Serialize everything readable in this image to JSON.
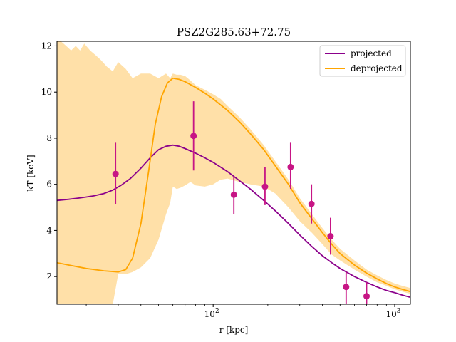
{
  "chart_data": {
    "type": "line",
    "title": "PSZ2G285.63+72.75",
    "xlabel": "r [kpc]",
    "ylabel": "kT [keV]",
    "xscale": "log",
    "xlim": [
      13.8,
      1220
    ],
    "ylim": [
      0.8,
      12.2
    ],
    "grid": false,
    "legend_position": "top-right",
    "xtick_labels": [
      {
        "value": 100,
        "base": "10",
        "exp": "2"
      },
      {
        "value": 1000,
        "base": "10",
        "exp": "3"
      }
    ],
    "yticks": [
      2,
      4,
      6,
      8,
      10,
      12
    ],
    "colors": {
      "projected": "#8b008b",
      "deprojected": "#ffa500",
      "band": "#ffe0a8",
      "points": "#c71585"
    },
    "series": [
      {
        "name": "projected",
        "x": [
          13.8,
          16,
          18,
          20,
          22,
          25,
          28,
          31,
          35,
          40,
          45,
          50,
          55,
          60,
          65,
          70,
          80,
          90,
          100,
          120,
          140,
          160,
          190,
          220,
          260,
          300,
          350,
          400,
          450,
          500,
          600,
          700,
          800,
          900,
          1000,
          1100,
          1220
        ],
        "y": [
          5.3,
          5.35,
          5.4,
          5.45,
          5.5,
          5.6,
          5.75,
          5.95,
          6.25,
          6.7,
          7.15,
          7.5,
          7.65,
          7.7,
          7.65,
          7.55,
          7.35,
          7.15,
          6.95,
          6.55,
          6.15,
          5.8,
          5.3,
          4.85,
          4.3,
          3.8,
          3.3,
          2.9,
          2.6,
          2.35,
          2.0,
          1.75,
          1.55,
          1.4,
          1.3,
          1.2,
          1.1
        ]
      },
      {
        "name": "deprojected",
        "x": [
          13.8,
          16,
          20,
          25,
          30,
          33,
          36,
          40,
          44,
          48,
          52,
          56,
          60,
          65,
          70,
          80,
          90,
          100,
          120,
          140,
          160,
          190,
          220,
          260,
          300,
          350,
          400,
          450,
          500,
          600,
          700,
          800,
          900,
          1000,
          1100,
          1220
        ],
        "y": [
          2.6,
          2.5,
          2.35,
          2.25,
          2.2,
          2.3,
          2.8,
          4.3,
          6.5,
          8.6,
          9.8,
          10.4,
          10.6,
          10.55,
          10.45,
          10.2,
          9.95,
          9.7,
          9.2,
          8.7,
          8.2,
          7.5,
          6.8,
          6.0,
          5.2,
          4.5,
          3.9,
          3.4,
          3.0,
          2.5,
          2.15,
          1.9,
          1.7,
          1.55,
          1.45,
          1.35
        ]
      }
    ],
    "deprojected_band": {
      "x": [
        13.8,
        14.5,
        15.5,
        16.5,
        17.5,
        18.5,
        19.5,
        21,
        22.5,
        24,
        26,
        28,
        30,
        33,
        36,
        40,
        45,
        50,
        55,
        58,
        60,
        63,
        66,
        70,
        75,
        80,
        90,
        100,
        110,
        120,
        140,
        160,
        190,
        220,
        260,
        300,
        350,
        400,
        450,
        500,
        600,
        700,
        800,
        900,
        1000,
        1100,
        1220
      ],
      "upper": [
        12.2,
        12.2,
        12.0,
        11.8,
        12.0,
        11.8,
        12.1,
        11.8,
        11.6,
        11.4,
        11.1,
        10.9,
        11.3,
        11.0,
        10.6,
        10.8,
        10.8,
        10.6,
        10.8,
        10.6,
        10.8,
        10.75,
        10.75,
        10.7,
        10.5,
        10.3,
        10.1,
        9.9,
        9.7,
        9.4,
        8.9,
        8.4,
        7.7,
        7.0,
        6.2,
        5.4,
        4.7,
        4.1,
        3.6,
        3.2,
        2.7,
        2.3,
        2.05,
        1.85,
        1.7,
        1.6,
        1.5
      ],
      "lower": [
        0.8,
        0.8,
        0.8,
        0.8,
        0.8,
        0.8,
        0.8,
        0.8,
        0.8,
        0.8,
        0.8,
        0.8,
        2.1,
        2.1,
        2.2,
        2.4,
        2.8,
        3.6,
        4.7,
        5.2,
        5.9,
        5.8,
        5.85,
        5.95,
        6.1,
        5.95,
        5.9,
        6.0,
        6.2,
        6.25,
        6.1,
        6.0,
        5.9,
        5.6,
        5.0,
        4.4,
        3.9,
        3.4,
        2.95,
        2.7,
        2.3,
        2.0,
        1.75,
        1.6,
        1.45,
        1.35,
        1.25
      ]
    },
    "data_points": {
      "x": [
        29,
        78,
        130,
        193,
        267,
        348,
        443,
        540,
        700
      ],
      "y": [
        6.45,
        8.1,
        5.55,
        5.9,
        6.75,
        5.15,
        3.75,
        1.55,
        1.15
      ],
      "yerr_low": [
        1.3,
        1.5,
        0.85,
        0.8,
        0.95,
        0.85,
        0.8,
        0.75,
        0.6
      ],
      "yerr_high": [
        1.35,
        1.5,
        0.8,
        0.85,
        1.05,
        0.85,
        0.8,
        0.65,
        0.6
      ]
    }
  }
}
